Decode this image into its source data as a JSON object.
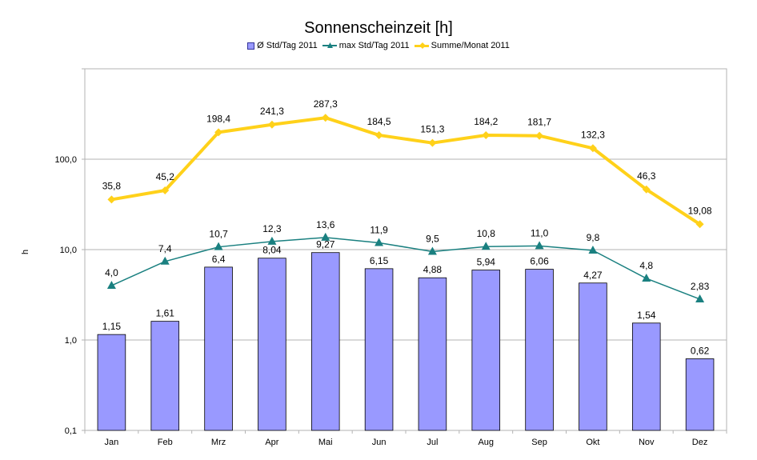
{
  "chart_data": {
    "type": "bar",
    "title": "Sonnenscheinzeit [h]",
    "xlabel": "",
    "ylabel": "h",
    "yscale": "log",
    "ylim": [
      0.1,
      1000
    ],
    "yticks": [
      "0,1",
      "1,0",
      "10,0",
      "100,0"
    ],
    "grid": true,
    "legend_position": "top",
    "categories": [
      "Jan",
      "Feb",
      "Mrz",
      "Apr",
      "Mai",
      "Jun",
      "Jul",
      "Aug",
      "Sep",
      "Okt",
      "Nov",
      "Dez"
    ],
    "series": [
      {
        "name": "Ø  Std/Tag 2011",
        "kind": "bar",
        "color": "#9999ff",
        "values": [
          1.15,
          1.61,
          6.4,
          8.04,
          9.27,
          6.15,
          4.88,
          5.94,
          6.06,
          4.27,
          1.54,
          0.62
        ],
        "labels": [
          "1,15",
          "1,61",
          "6,4",
          "8,04",
          "9,27",
          "6,15",
          "4,88",
          "5,94",
          "6,06",
          "4,27",
          "1,54",
          "0,62"
        ]
      },
      {
        "name": "max Std/Tag 2011",
        "kind": "line",
        "marker": "triangle",
        "color": "#1a8080",
        "values": [
          4.0,
          7.4,
          10.7,
          12.3,
          13.6,
          11.9,
          9.5,
          10.8,
          11.0,
          9.8,
          4.8,
          2.83
        ],
        "labels": [
          "4,0",
          "7,4",
          "10,7",
          "12,3",
          "13,6",
          "11,9",
          "9,5",
          "10,8",
          "11,0",
          "9,8",
          "4,8",
          "2,83"
        ]
      },
      {
        "name": "Summe/Monat 2011",
        "kind": "line",
        "marker": "diamond",
        "color": "#ffd11a",
        "values": [
          35.8,
          45.2,
          198.4,
          241.3,
          287.3,
          184.5,
          151.3,
          184.2,
          181.7,
          132.3,
          46.3,
          19.08
        ],
        "labels": [
          "35,8",
          "45,2",
          "198,4",
          "241,3",
          "287,3",
          "184,5",
          "151,3",
          "184,2",
          "181,7",
          "132,3",
          "46,3",
          "19,08"
        ]
      }
    ]
  }
}
